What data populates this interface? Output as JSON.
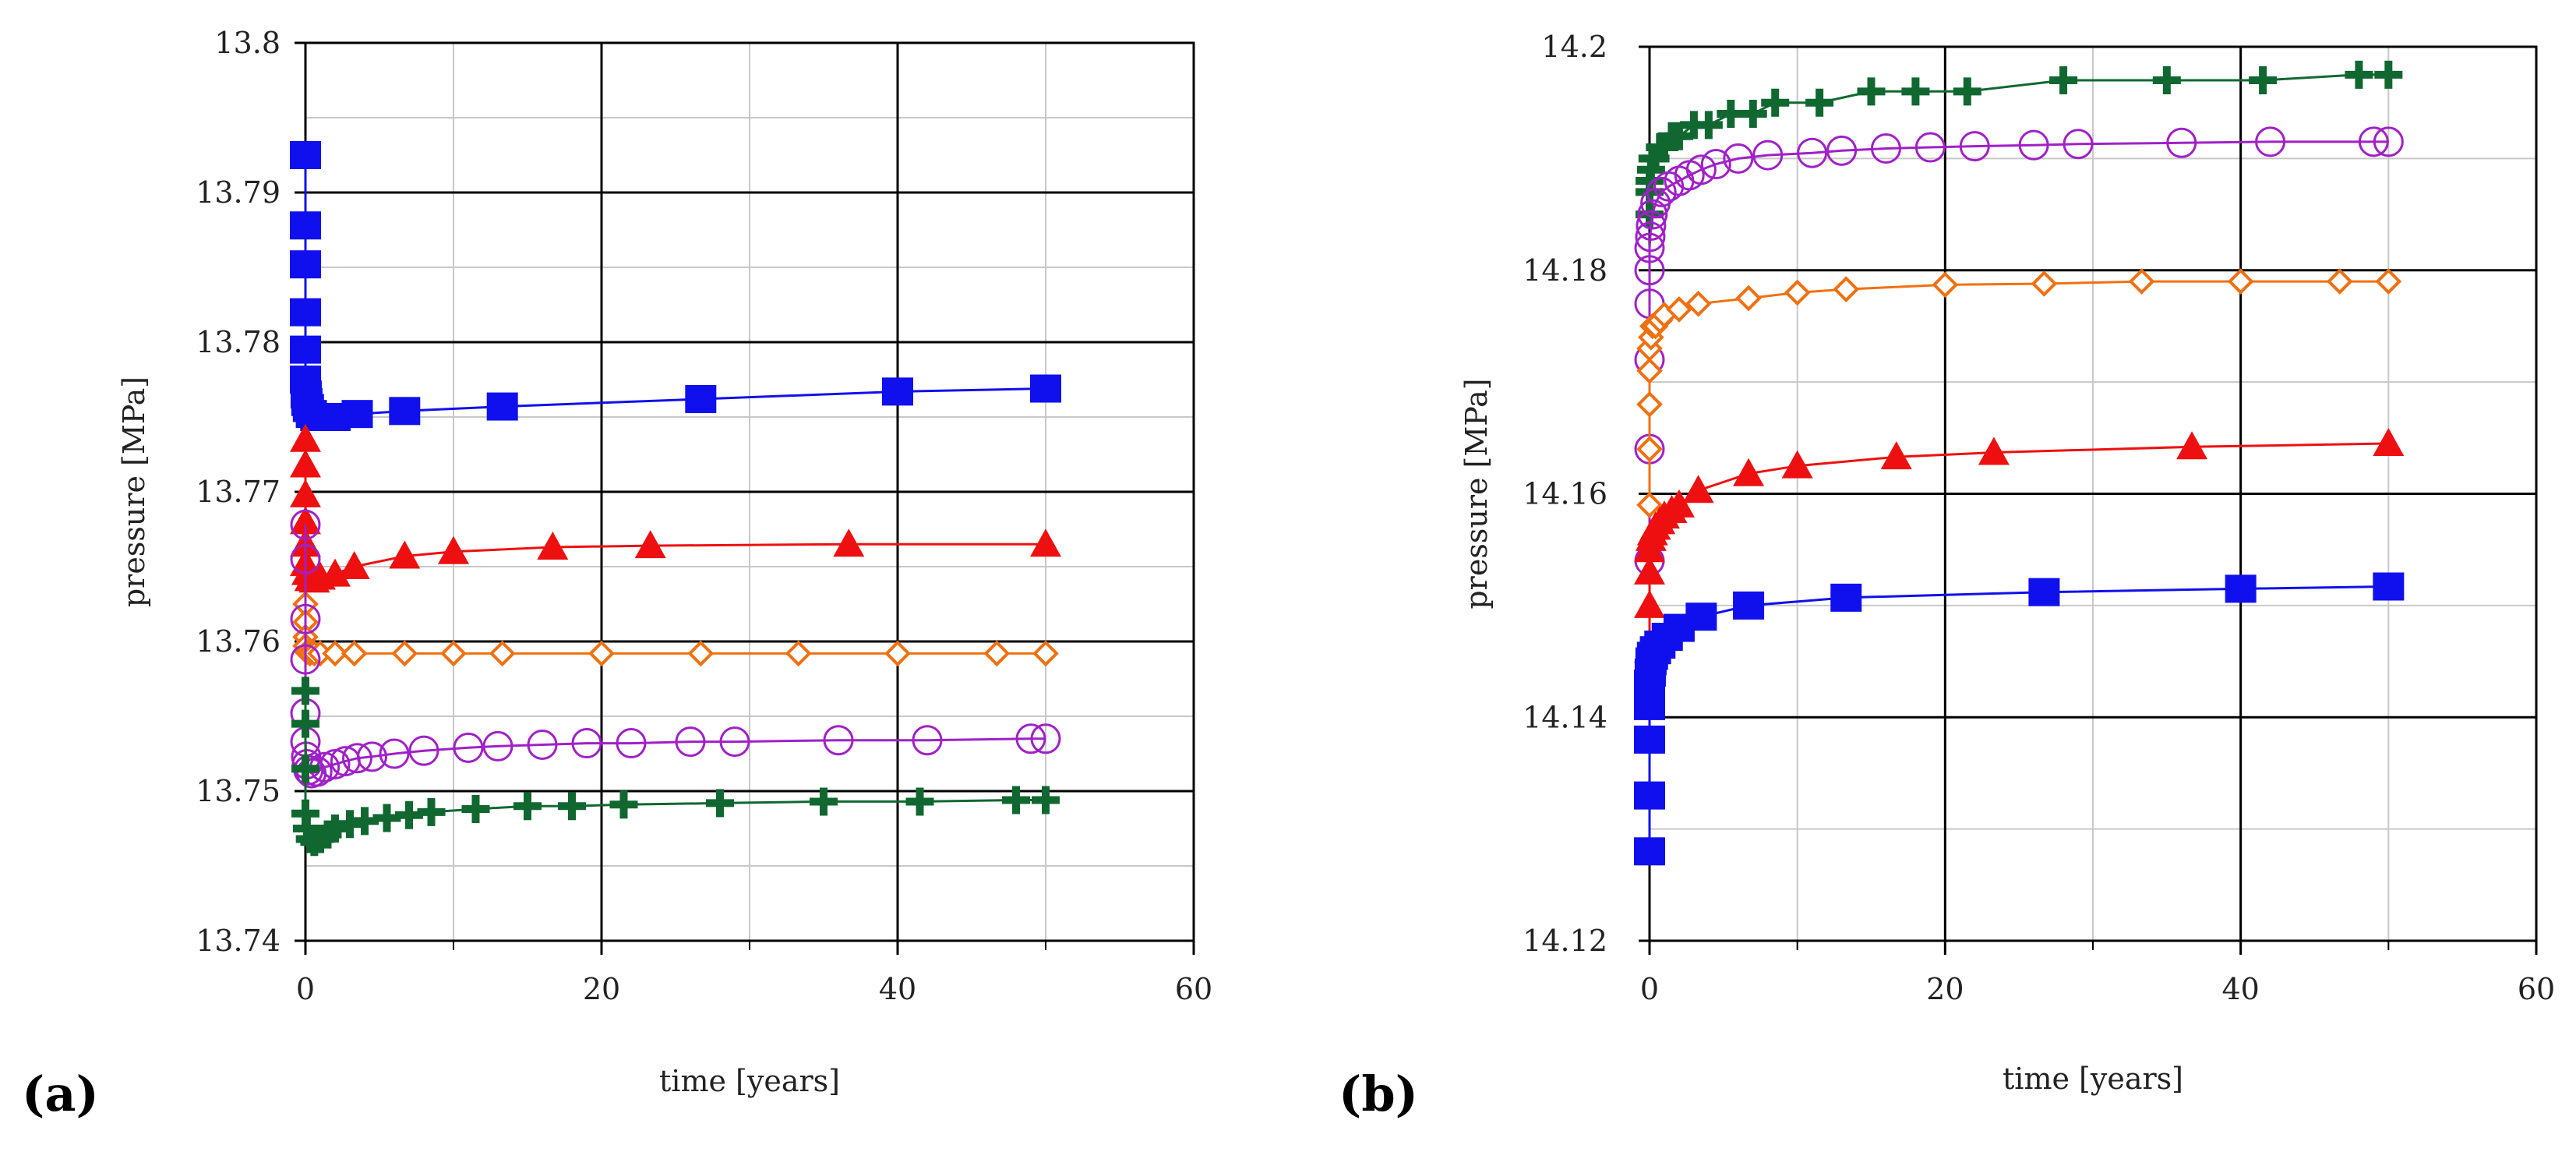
{
  "chart_data": [
    {
      "type": "scatter",
      "panel_label": "(a)",
      "xlabel": "time [years]",
      "ylabel": "pressure [MPa]",
      "xlim": [
        0,
        60
      ],
      "ylim": [
        13.74,
        13.8
      ],
      "xticks": [
        "0",
        "20",
        "40",
        "60"
      ],
      "xtick_values": [
        0,
        20,
        40,
        60
      ],
      "yticks": [
        "13.74",
        "13.75",
        "13.76",
        "13.77",
        "13.78",
        "13.79",
        "13.8"
      ],
      "ytick_values": [
        13.74,
        13.75,
        13.76,
        13.77,
        13.78,
        13.79,
        13.8
      ],
      "grid": true,
      "series": [
        {
          "marker": "square",
          "color": "#1010ee",
          "x": [
            0,
            0,
            0,
            0,
            0,
            0,
            0.05,
            0.1,
            0.2,
            0.4,
            0.7,
            1.2,
            2.0,
            3.5,
            6.7,
            13.3,
            26.7,
            40,
            50
          ],
          "y": [
            13.7925,
            13.7878,
            13.7852,
            13.782,
            13.7795,
            13.7775,
            13.7765,
            13.776,
            13.7756,
            13.7752,
            13.775,
            13.775,
            13.775,
            13.7752,
            13.7754,
            13.7757,
            13.7762,
            13.7767,
            13.7769
          ]
        },
        {
          "marker": "triangle",
          "color": "#ee1010",
          "x": [
            0,
            0,
            0,
            0,
            0,
            0,
            0.1,
            0.3,
            0.6,
            1.0,
            2.0,
            3.3,
            6.7,
            10,
            16.7,
            23.3,
            36.7,
            50
          ],
          "y": [
            13.7735,
            13.7718,
            13.7698,
            13.768,
            13.7665,
            13.7652,
            13.7646,
            13.7642,
            13.7641,
            13.7643,
            13.7645,
            13.765,
            13.7657,
            13.766,
            13.7663,
            13.7664,
            13.7665,
            13.7665
          ]
        },
        {
          "marker": "diamond",
          "color": "#f07010",
          "x": [
            0,
            0,
            0,
            0,
            0.1,
            0.3,
            0.6,
            1.0,
            2.0,
            3.3,
            6.7,
            10,
            13.3,
            20,
            26.7,
            33.3,
            40,
            46.7,
            50
          ],
          "y": [
            13.7625,
            13.7613,
            13.7603,
            13.7597,
            13.7593,
            13.7592,
            13.7592,
            13.7592,
            13.7592,
            13.7592,
            13.7592,
            13.7592,
            13.7592,
            13.7592,
            13.7592,
            13.7592,
            13.7592,
            13.7592,
            13.7592
          ]
        },
        {
          "marker": "circle",
          "color": "#a020c8",
          "x": [
            0,
            0,
            0,
            0,
            0,
            0,
            0.05,
            0.1,
            0.2,
            0.4,
            0.8,
            1.3,
            2.0,
            2.7,
            3.5,
            4.5,
            6.0,
            8.0,
            11.0,
            13.0,
            16.0,
            19.0,
            22.0,
            26.0,
            29.0,
            36.0,
            42.0,
            49.0,
            50.0
          ],
          "y": [
            13.7678,
            13.7655,
            13.7615,
            13.7588,
            13.7552,
            13.7533,
            13.7523,
            13.7518,
            13.7514,
            13.7512,
            13.7513,
            13.7516,
            13.7518,
            13.752,
            13.7522,
            13.7523,
            13.7525,
            13.7527,
            13.7529,
            13.753,
            13.7531,
            13.7532,
            13.7532,
            13.7533,
            13.7533,
            13.7534,
            13.7534,
            13.7535,
            13.7535
          ]
        },
        {
          "marker": "plus",
          "color": "#106830",
          "x": [
            0,
            0,
            0,
            0,
            0.1,
            0.3,
            0.6,
            1.0,
            1.5,
            2.0,
            3.0,
            4.0,
            5.5,
            7.0,
            8.5,
            11.5,
            15.0,
            18.0,
            21.5,
            28.0,
            35.0,
            41.5,
            48.0,
            50.0
          ],
          "y": [
            13.7567,
            13.7545,
            13.7515,
            13.7485,
            13.7475,
            13.7468,
            13.7466,
            13.7468,
            13.7471,
            13.7475,
            13.7478,
            13.748,
            13.7482,
            13.7484,
            13.7486,
            13.7488,
            13.749,
            13.749,
            13.7491,
            13.7492,
            13.7493,
            13.7493,
            13.7494,
            13.7494
          ]
        }
      ]
    },
    {
      "type": "scatter",
      "panel_label": "(b)",
      "xlabel": "time [years]",
      "ylabel": "pressure [MPa]",
      "xlim": [
        0,
        60
      ],
      "ylim": [
        14.12,
        14.2
      ],
      "xticks": [
        "0",
        "20",
        "40",
        "60"
      ],
      "xtick_values": [
        0,
        20,
        40,
        60
      ],
      "yticks": [
        "14.12",
        "14.14",
        "14.16",
        "14.18",
        "14.2"
      ],
      "ytick_values": [
        14.12,
        14.14,
        14.16,
        14.18,
        14.2
      ],
      "grid": true,
      "series": [
        {
          "marker": "plus",
          "color": "#106830",
          "x": [
            0,
            0,
            0,
            0.1,
            0.2,
            0.4,
            0.7,
            1.0,
            1.5,
            2.0,
            3.0,
            4.0,
            5.5,
            7.0,
            8.5,
            11.5,
            15.0,
            18.0,
            21.5,
            28.0,
            35.0,
            41.5,
            48.0,
            50.0
          ],
          "y": [
            14.185,
            14.187,
            14.188,
            14.189,
            14.19,
            14.19,
            14.191,
            14.191,
            14.192,
            14.192,
            14.193,
            14.193,
            14.194,
            14.194,
            14.195,
            14.195,
            14.196,
            14.196,
            14.196,
            14.197,
            14.197,
            14.197,
            14.1975,
            14.1975
          ]
        },
        {
          "marker": "circle",
          "color": "#a020c8",
          "x": [
            0,
            0,
            0,
            0,
            0,
            0,
            0.05,
            0.1,
            0.2,
            0.4,
            0.8,
            1.3,
            2.0,
            2.7,
            3.5,
            4.5,
            6.0,
            8.0,
            11.0,
            13.0,
            16.0,
            19.0,
            22.0,
            26.0,
            29.0,
            36.0,
            42.0,
            49.0,
            50.0
          ],
          "y": [
            14.154,
            14.164,
            14.172,
            14.177,
            14.18,
            14.182,
            14.183,
            14.184,
            14.185,
            14.186,
            14.187,
            14.1875,
            14.188,
            14.1885,
            14.189,
            14.1895,
            14.19,
            14.1903,
            14.1905,
            14.1907,
            14.1909,
            14.191,
            14.1911,
            14.1912,
            14.1913,
            14.1914,
            14.1915,
            14.1915,
            14.1915
          ]
        },
        {
          "marker": "diamond",
          "color": "#f07010",
          "x": [
            0,
            0,
            0,
            0,
            0,
            0.1,
            0.2,
            0.4,
            0.7,
            1.0,
            2.0,
            3.3,
            6.7,
            10,
            13.3,
            20,
            26.7,
            33.3,
            40,
            46.7,
            50
          ],
          "y": [
            14.159,
            14.164,
            14.168,
            14.171,
            14.173,
            14.174,
            14.175,
            14.175,
            14.1755,
            14.176,
            14.1765,
            14.177,
            14.1775,
            14.178,
            14.1783,
            14.1787,
            14.1788,
            14.179,
            14.179,
            14.179,
            14.179
          ]
        },
        {
          "marker": "triangle",
          "color": "#ee1010",
          "x": [
            0,
            0,
            0,
            0,
            0,
            0.1,
            0.2,
            0.4,
            0.7,
            1.0,
            1.5,
            2.0,
            3.3,
            6.7,
            10,
            16.7,
            23.3,
            36.7,
            50
          ],
          "y": [
            14.141,
            14.146,
            14.15,
            14.153,
            14.155,
            14.156,
            14.1565,
            14.157,
            14.1575,
            14.158,
            14.1585,
            14.159,
            14.1603,
            14.1618,
            14.1625,
            14.1633,
            14.1637,
            14.1642,
            14.1645
          ]
        },
        {
          "marker": "square",
          "color": "#1010ee",
          "x": [
            0,
            0,
            0,
            0,
            0,
            0.05,
            0.1,
            0.2,
            0.4,
            0.7,
            1.2,
            2.0,
            3.5,
            6.7,
            13.3,
            26.7,
            40,
            50
          ],
          "y": [
            14.128,
            14.133,
            14.138,
            14.141,
            14.143,
            14.144,
            14.145,
            14.1455,
            14.146,
            14.1465,
            14.1472,
            14.148,
            14.149,
            14.15,
            14.1507,
            14.1512,
            14.1515,
            14.1517
          ]
        }
      ]
    }
  ]
}
